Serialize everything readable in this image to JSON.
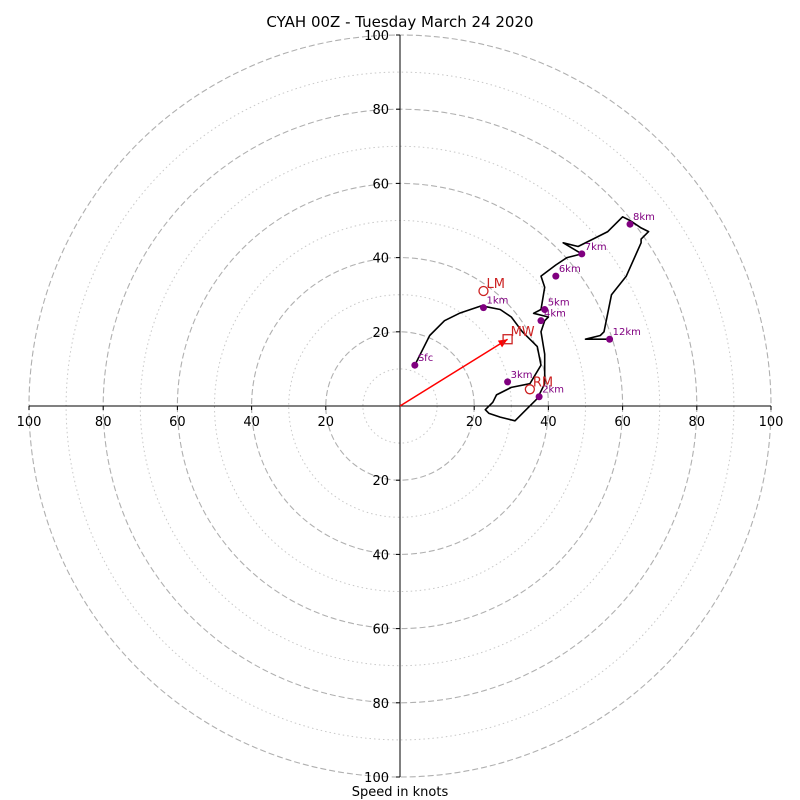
{
  "chart_data": {
    "type": "line",
    "title": "CYAH 00Z - Tuesday March 24 2020",
    "xlabel": "Speed in knots",
    "xlim": [
      -100,
      100
    ],
    "ylim": [
      -100,
      100
    ],
    "solid_rings": [
      20,
      40,
      60,
      80,
      100
    ],
    "dotted_rings": [
      10,
      30,
      50,
      70,
      90
    ],
    "x_ticks": [
      {
        "value": -100,
        "label": "100"
      },
      {
        "value": -80,
        "label": "80"
      },
      {
        "value": -60,
        "label": "60"
      },
      {
        "value": -40,
        "label": "40"
      },
      {
        "value": -20,
        "label": "20"
      },
      {
        "value": 20,
        "label": "20"
      },
      {
        "value": 40,
        "label": "40"
      },
      {
        "value": 60,
        "label": "60"
      },
      {
        "value": 80,
        "label": "80"
      },
      {
        "value": 100,
        "label": "100"
      }
    ],
    "y_ticks": [
      {
        "value": 100,
        "label": "100"
      },
      {
        "value": 80,
        "label": "80"
      },
      {
        "value": 60,
        "label": "60"
      },
      {
        "value": 40,
        "label": "40"
      },
      {
        "value": 20,
        "label": "20"
      },
      {
        "value": -20,
        "label": "20"
      },
      {
        "value": -40,
        "label": "40"
      },
      {
        "value": -60,
        "label": "60"
      },
      {
        "value": -80,
        "label": "80"
      },
      {
        "value": -100,
        "label": "100"
      }
    ],
    "hodograph": {
      "x": [
        4,
        8,
        12,
        16,
        22,
        27,
        30,
        33,
        37,
        38,
        35,
        30,
        26,
        25,
        23,
        24,
        27,
        31,
        34,
        37,
        39,
        39,
        38,
        39,
        40,
        36,
        38,
        39,
        38,
        42,
        45,
        49,
        44,
        48,
        52,
        56,
        60,
        62,
        65,
        67,
        65,
        65,
        61,
        57,
        55,
        54,
        50,
        53,
        56
      ],
      "y": [
        11,
        19,
        23,
        25,
        27,
        26,
        24,
        20,
        16,
        11,
        6,
        5,
        3,
        1,
        -1,
        -2,
        -3,
        -4,
        -1,
        2,
        6,
        14,
        20,
        23,
        24,
        25,
        26,
        32,
        35,
        38,
        40,
        41,
        44,
        43,
        45,
        47,
        51,
        50,
        48,
        47,
        45,
        44,
        35,
        30,
        20,
        19,
        18,
        18,
        18
      ]
    },
    "height_markers": [
      {
        "label": "Sfc",
        "x": 4,
        "y": 11
      },
      {
        "label": "1km",
        "x": 22.5,
        "y": 26.5
      },
      {
        "label": "2km",
        "x": 37.5,
        "y": 2.5
      },
      {
        "label": "3km",
        "x": 29,
        "y": 6.5
      },
      {
        "label": "4km",
        "x": 38,
        "y": 23
      },
      {
        "label": "5km",
        "x": 39,
        "y": 26
      },
      {
        "label": "6km",
        "x": 42,
        "y": 35
      },
      {
        "label": "7km",
        "x": 49,
        "y": 41
      },
      {
        "label": "8km",
        "x": 62,
        "y": 49
      },
      {
        "label": "12km",
        "x": 56.5,
        "y": 18
      }
    ],
    "motion_points": [
      {
        "label": "LM",
        "x": 22.5,
        "y": 31,
        "marker": "circle"
      },
      {
        "label": "RM",
        "x": 35,
        "y": 4.5,
        "marker": "circle"
      },
      {
        "label": "MW",
        "x": 29,
        "y": 18,
        "marker": "square"
      }
    ],
    "mean_wind_vector": {
      "from": [
        0,
        0
      ],
      "to": [
        29,
        18
      ]
    },
    "colors": {
      "hodograph": "#000000",
      "markers": "#800080",
      "motion": "#cc2222",
      "vector": "#ff0000",
      "grid": "#b0b0b0",
      "axes": "#000000"
    }
  }
}
